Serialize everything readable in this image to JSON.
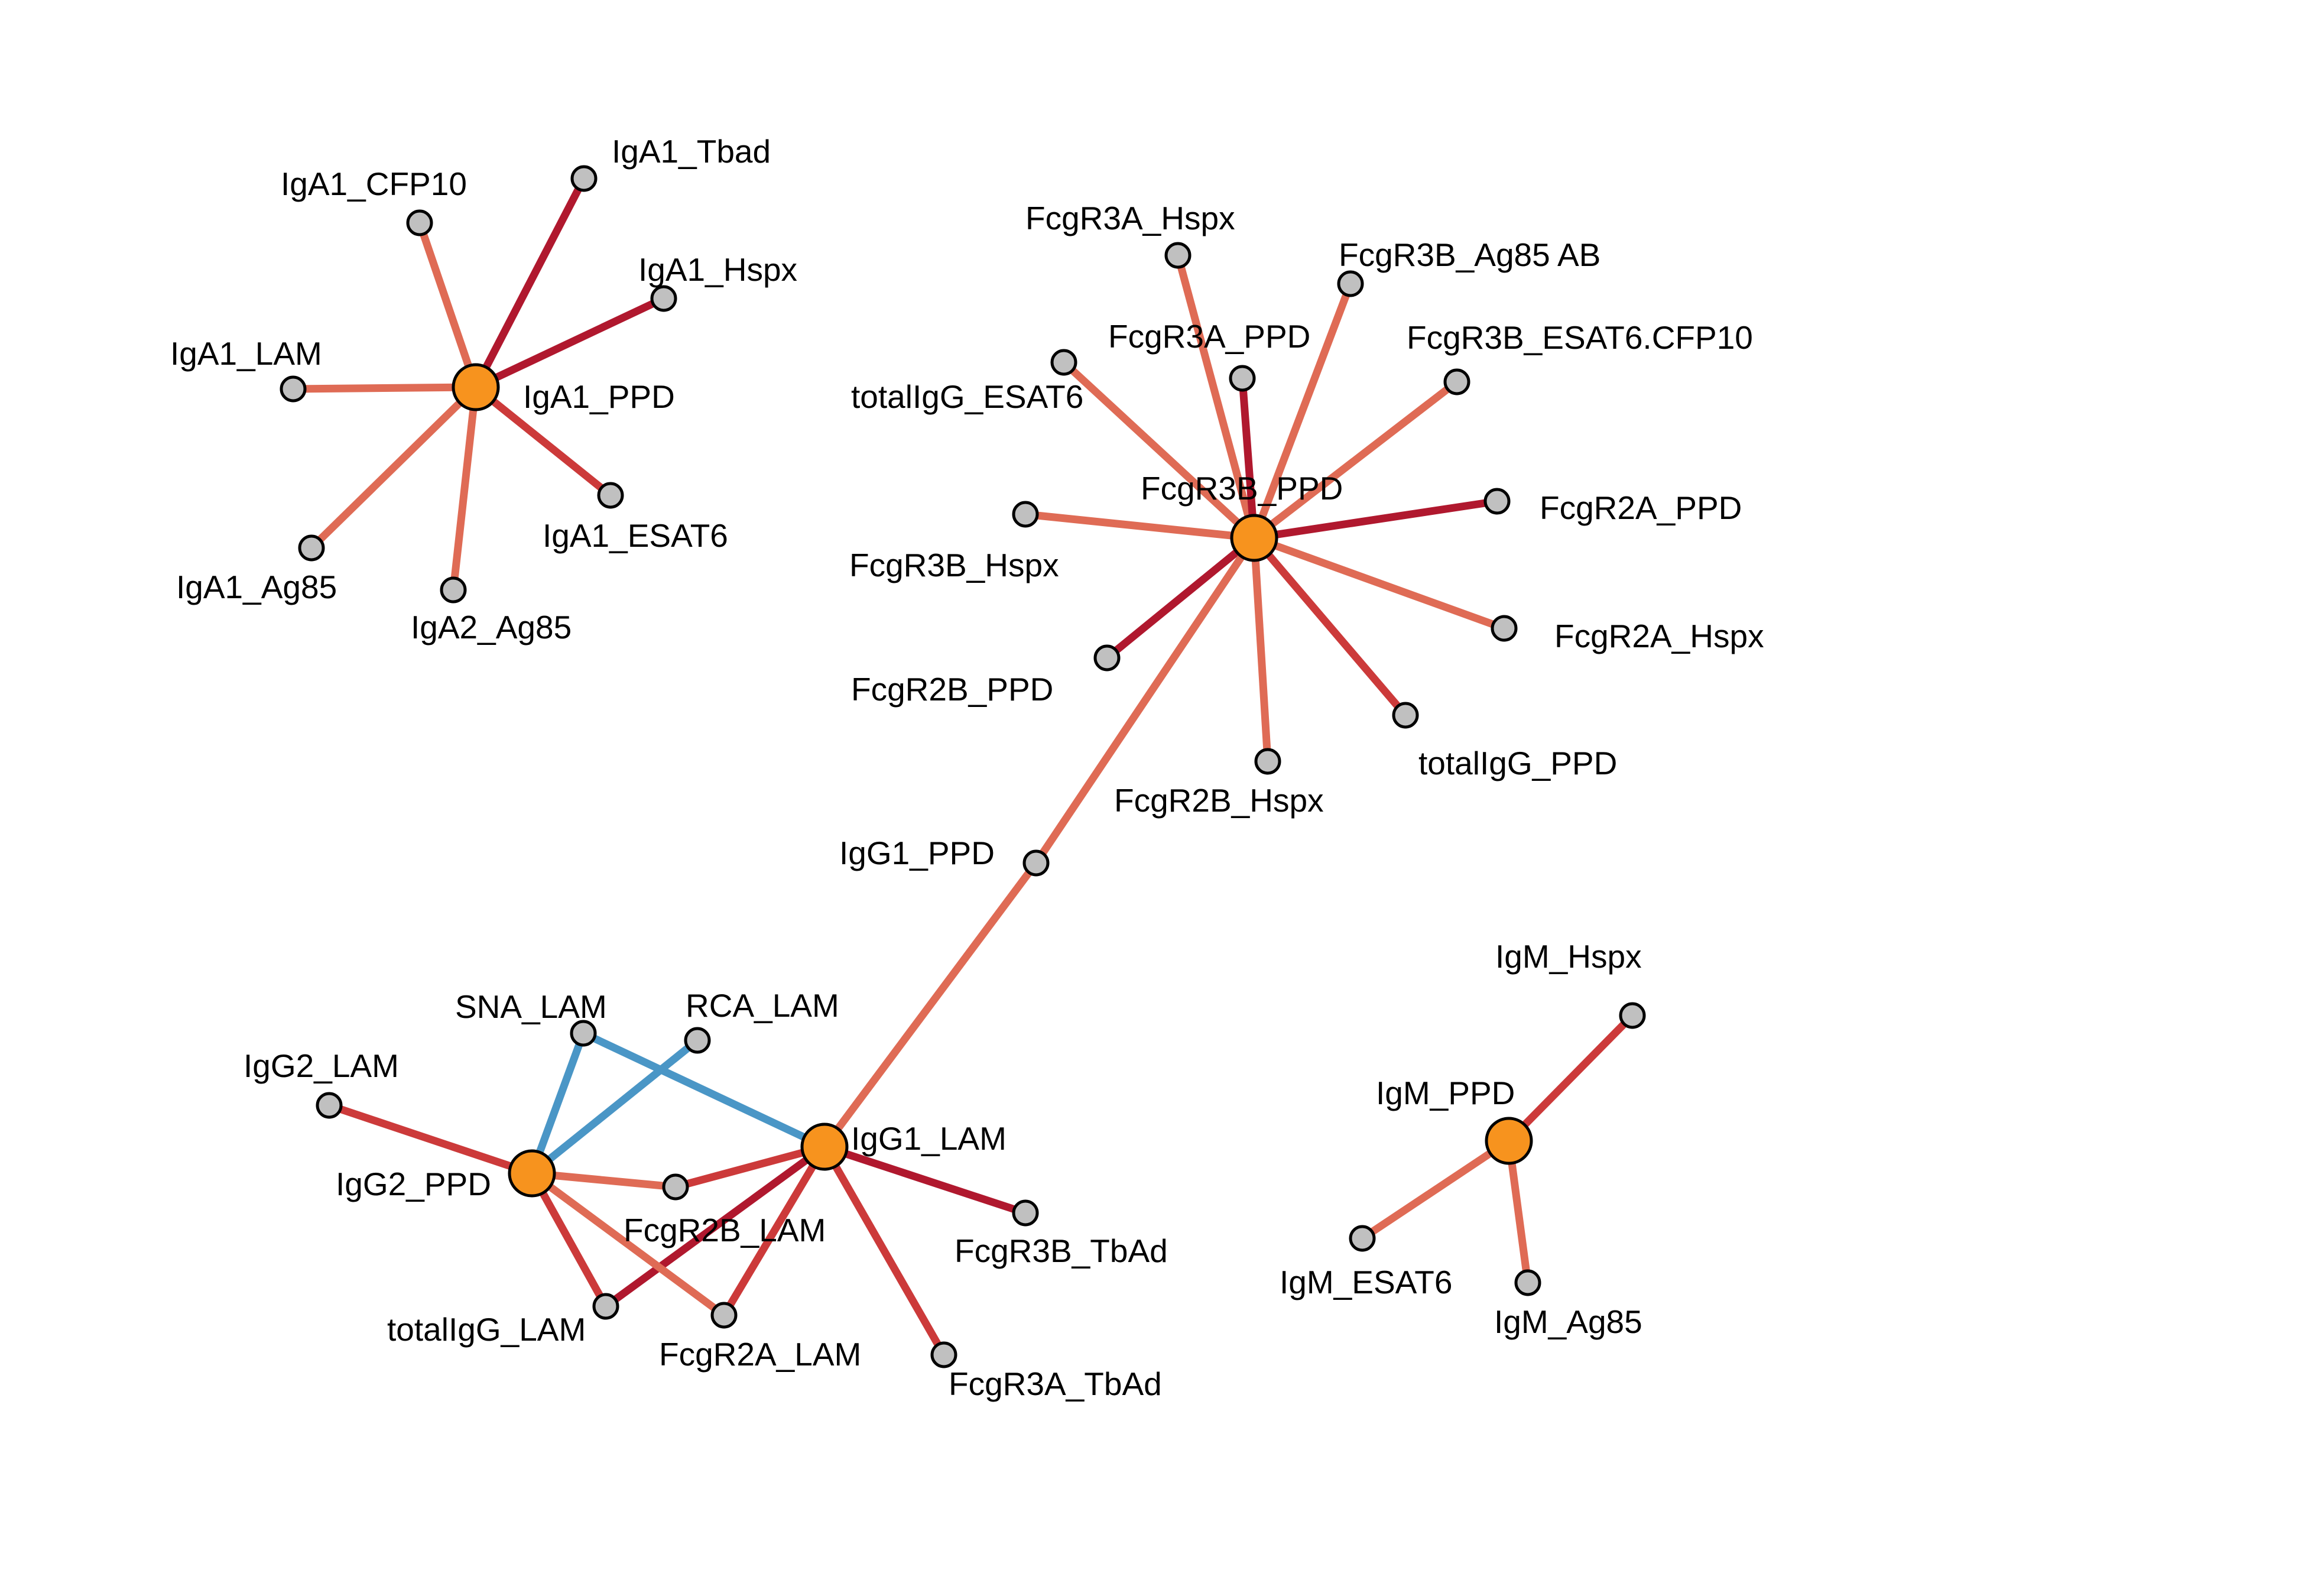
{
  "colors": {
    "hub": "#F7931E",
    "leaf": "#C0C0C0",
    "positive_strong": "#B0182E",
    "positive_medium": "#CC3A3A",
    "positive_light": "#DF6B55",
    "negative": "#4A96C6"
  },
  "nodes": [
    {
      "id": "IgA1_PPD",
      "label": "IgA1_PPD",
      "hub": true
    },
    {
      "id": "IgA1_Tbad",
      "label": "IgA1_Tbad",
      "hub": false
    },
    {
      "id": "IgA1_CFP10",
      "label": "IgA1_CFP10",
      "hub": false
    },
    {
      "id": "IgA1_Hspx",
      "label": "IgA1_Hspx",
      "hub": false
    },
    {
      "id": "IgA1_LAM",
      "label": "IgA1_LAM",
      "hub": false
    },
    {
      "id": "IgA1_ESAT6",
      "label": "IgA1_ESAT6",
      "hub": false
    },
    {
      "id": "IgA1_Ag85",
      "label": "IgA1_Ag85",
      "hub": false
    },
    {
      "id": "IgA2_Ag85",
      "label": "IgA2_Ag85",
      "hub": false
    },
    {
      "id": "FcgR3B_PPD",
      "label": "FcgR3B_PPD",
      "hub": true
    },
    {
      "id": "FcgR3A_Hspx",
      "label": "FcgR3A_Hspx",
      "hub": false
    },
    {
      "id": "FcgR3B_Ag85AB",
      "label": "FcgR3B_Ag85 AB",
      "hub": false
    },
    {
      "id": "FcgR3A_PPD",
      "label": "FcgR3A_PPD",
      "hub": false
    },
    {
      "id": "FcgR3B_ESAT6CFP10",
      "label": "FcgR3B_ESAT6.CFP10",
      "hub": false
    },
    {
      "id": "totalIgG_ESAT6",
      "label": "totalIgG_ESAT6",
      "hub": false
    },
    {
      "id": "FcgR2A_PPD",
      "label": "FcgR2A_PPD",
      "hub": false
    },
    {
      "id": "FcgR3B_Hspx",
      "label": "FcgR3B_Hspx",
      "hub": false
    },
    {
      "id": "FcgR2A_Hspx",
      "label": "FcgR2A_Hspx",
      "hub": false
    },
    {
      "id": "FcgR2B_PPD",
      "label": "FcgR2B_PPD",
      "hub": false
    },
    {
      "id": "totalIgG_PPD",
      "label": "totalIgG_PPD",
      "hub": false
    },
    {
      "id": "FcgR2B_Hspx",
      "label": "FcgR2B_Hspx",
      "hub": false
    },
    {
      "id": "IgG1_PPD",
      "label": "IgG1_PPD",
      "hub": false
    },
    {
      "id": "IgG1_LAM",
      "label": "IgG1_LAM",
      "hub": true
    },
    {
      "id": "IgG2_PPD",
      "label": "IgG2_PPD",
      "hub": true
    },
    {
      "id": "SNA_LAM",
      "label": "SNA_LAM",
      "hub": false
    },
    {
      "id": "RCA_LAM",
      "label": "RCA_LAM",
      "hub": false
    },
    {
      "id": "IgG2_LAM",
      "label": "IgG2_LAM",
      "hub": false
    },
    {
      "id": "FcgR2B_LAM",
      "label": "FcgR2B_LAM",
      "hub": false
    },
    {
      "id": "FcgR3B_TbAd",
      "label": "FcgR3B_TbAd",
      "hub": false
    },
    {
      "id": "totalIgG_LAM",
      "label": "totalIgG_LAM",
      "hub": false
    },
    {
      "id": "FcgR2A_LAM",
      "label": "FcgR2A_LAM",
      "hub": false
    },
    {
      "id": "FcgR3A_TbAd",
      "label": "FcgR3A_TbAd",
      "hub": false
    },
    {
      "id": "IgM_PPD",
      "label": "IgM_PPD",
      "hub": true
    },
    {
      "id": "IgM_Hspx",
      "label": "IgM_Hspx",
      "hub": false
    },
    {
      "id": "IgM_ESAT6",
      "label": "IgM_ESAT6",
      "hub": false
    },
    {
      "id": "IgM_Ag85",
      "label": "IgM_Ag85",
      "hub": false
    }
  ],
  "edges": [
    {
      "source": "IgA1_PPD",
      "target": "IgA1_Tbad",
      "sign": "positive",
      "strength": "strong"
    },
    {
      "source": "IgA1_PPD",
      "target": "IgA1_CFP10",
      "sign": "positive",
      "strength": "light"
    },
    {
      "source": "IgA1_PPD",
      "target": "IgA1_Hspx",
      "sign": "positive",
      "strength": "strong"
    },
    {
      "source": "IgA1_PPD",
      "target": "IgA1_LAM",
      "sign": "positive",
      "strength": "light"
    },
    {
      "source": "IgA1_PPD",
      "target": "IgA1_ESAT6",
      "sign": "positive",
      "strength": "medium"
    },
    {
      "source": "IgA1_PPD",
      "target": "IgA1_Ag85",
      "sign": "positive",
      "strength": "light"
    },
    {
      "source": "IgA1_PPD",
      "target": "IgA2_Ag85",
      "sign": "positive",
      "strength": "light"
    },
    {
      "source": "FcgR3B_PPD",
      "target": "FcgR3A_Hspx",
      "sign": "positive",
      "strength": "light"
    },
    {
      "source": "FcgR3B_PPD",
      "target": "FcgR3B_Ag85AB",
      "sign": "positive",
      "strength": "light"
    },
    {
      "source": "FcgR3B_PPD",
      "target": "FcgR3A_PPD",
      "sign": "positive",
      "strength": "strong"
    },
    {
      "source": "FcgR3B_PPD",
      "target": "FcgR3B_ESAT6CFP10",
      "sign": "positive",
      "strength": "light"
    },
    {
      "source": "FcgR3B_PPD",
      "target": "totalIgG_ESAT6",
      "sign": "positive",
      "strength": "light"
    },
    {
      "source": "FcgR3B_PPD",
      "target": "FcgR2A_PPD",
      "sign": "positive",
      "strength": "strong"
    },
    {
      "source": "FcgR3B_PPD",
      "target": "FcgR3B_Hspx",
      "sign": "positive",
      "strength": "light"
    },
    {
      "source": "FcgR3B_PPD",
      "target": "FcgR2A_Hspx",
      "sign": "positive",
      "strength": "light"
    },
    {
      "source": "FcgR3B_PPD",
      "target": "FcgR2B_PPD",
      "sign": "positive",
      "strength": "strong"
    },
    {
      "source": "FcgR3B_PPD",
      "target": "totalIgG_PPD",
      "sign": "positive",
      "strength": "medium"
    },
    {
      "source": "FcgR3B_PPD",
      "target": "FcgR2B_Hspx",
      "sign": "positive",
      "strength": "light"
    },
    {
      "source": "FcgR3B_PPD",
      "target": "IgG1_PPD",
      "sign": "positive",
      "strength": "light"
    },
    {
      "source": "IgG1_PPD",
      "target": "IgG1_LAM",
      "sign": "positive",
      "strength": "light"
    },
    {
      "source": "IgG1_LAM",
      "target": "SNA_LAM",
      "sign": "negative",
      "strength": "medium"
    },
    {
      "source": "IgG1_LAM",
      "target": "FcgR2B_LAM",
      "sign": "positive",
      "strength": "medium"
    },
    {
      "source": "IgG1_LAM",
      "target": "FcgR3B_TbAd",
      "sign": "positive",
      "strength": "strong"
    },
    {
      "source": "IgG1_LAM",
      "target": "totalIgG_LAM",
      "sign": "positive",
      "strength": "strong"
    },
    {
      "source": "IgG1_LAM",
      "target": "FcgR2A_LAM",
      "sign": "positive",
      "strength": "medium"
    },
    {
      "source": "IgG1_LAM",
      "target": "FcgR3A_TbAd",
      "sign": "positive",
      "strength": "medium"
    },
    {
      "source": "IgG2_PPD",
      "target": "SNA_LAM",
      "sign": "negative",
      "strength": "medium"
    },
    {
      "source": "IgG2_PPD",
      "target": "RCA_LAM",
      "sign": "negative",
      "strength": "medium"
    },
    {
      "source": "IgG2_PPD",
      "target": "IgG2_LAM",
      "sign": "positive",
      "strength": "medium"
    },
    {
      "source": "IgG2_PPD",
      "target": "FcgR2B_LAM",
      "sign": "positive",
      "strength": "light"
    },
    {
      "source": "IgG2_PPD",
      "target": "totalIgG_LAM",
      "sign": "positive",
      "strength": "medium"
    },
    {
      "source": "IgG2_PPD",
      "target": "FcgR2A_LAM",
      "sign": "positive",
      "strength": "light"
    },
    {
      "source": "IgM_PPD",
      "target": "IgM_Hspx",
      "sign": "positive",
      "strength": "medium"
    },
    {
      "source": "IgM_PPD",
      "target": "IgM_ESAT6",
      "sign": "positive",
      "strength": "light"
    },
    {
      "source": "IgM_PPD",
      "target": "IgM_Ag85",
      "sign": "positive",
      "strength": "light"
    }
  ]
}
